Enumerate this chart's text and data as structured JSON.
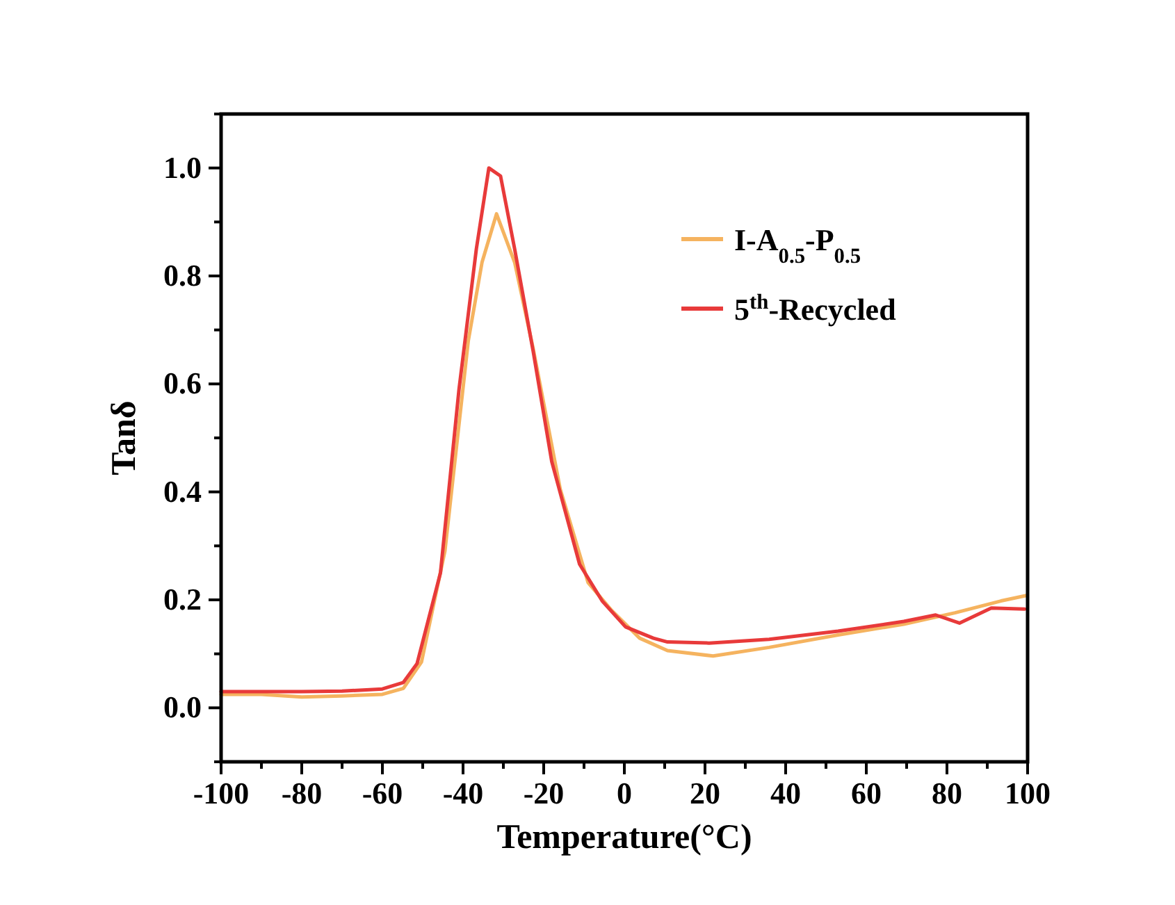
{
  "chart_data": {
    "type": "line",
    "xlabel": "Temperature(°C)",
    "ylabel": "Tanδ",
    "xlim": [
      -100,
      100
    ],
    "ylim": [
      -0.1,
      1.1
    ],
    "xticks": [
      -100,
      {
        "value": -90,
        "label": null
      },
      -80,
      {
        "value": -70,
        "label": null
      },
      -60,
      {
        "value": -50,
        "label": null
      },
      -40,
      {
        "value": -30,
        "label": null
      },
      -20,
      {
        "value": -10,
        "label": null
      },
      0,
      {
        "value": 10,
        "label": null
      },
      20,
      {
        "value": 30,
        "label": null
      },
      40,
      {
        "value": 50,
        "label": null
      },
      60,
      {
        "value": 70,
        "label": null
      },
      80,
      {
        "value": 90,
        "label": null
      },
      100
    ],
    "yticks": [
      {
        "value": -0.1,
        "label": null
      },
      {
        "value": 0,
        "label": "0.0"
      },
      {
        "value": 0.1,
        "label": null
      },
      {
        "value": 0.2,
        "label": "0.2"
      },
      {
        "value": 0.3,
        "label": null
      },
      {
        "value": 0.4,
        "label": "0.4"
      },
      {
        "value": 0.5,
        "label": null
      },
      {
        "value": 0.6,
        "label": "0.6"
      },
      {
        "value": 0.7,
        "label": null
      },
      {
        "value": 0.8,
        "label": "0.8"
      },
      {
        "value": 0.9,
        "label": null
      },
      {
        "value": 1.0,
        "label": "1.0"
      },
      {
        "value": 1.1,
        "label": null
      }
    ],
    "grid": false,
    "legend": "top right",
    "marker": "none",
    "line_style": "solid",
    "series": [
      {
        "name": "I-A$_{0.5}$-P$_{0.5}$",
        "color": "#f5b35f",
        "x": [
          -100,
          -90,
          -80,
          -70,
          -60,
          -54.8,
          -50.3,
          -44.5,
          -38.7,
          -35.3,
          -31.7,
          -27.2,
          -22.6,
          -15.9,
          -9,
          -3.1,
          3.8,
          10.7,
          22,
          35.9,
          53,
          69.3,
          82,
          93.4,
          99.7
        ],
        "values": [
          0.025,
          0.025,
          0.02,
          0.022,
          0.025,
          0.036,
          0.085,
          0.29,
          0.68,
          0.825,
          0.915,
          0.825,
          0.665,
          0.405,
          0.232,
          0.18,
          0.129,
          0.106,
          0.096,
          0.112,
          0.135,
          0.155,
          0.176,
          0.198,
          0.208
        ]
      },
      {
        "name": "5$^{th}$-Recycled",
        "color": "#e83a3a",
        "x": [
          -100,
          -90,
          -80,
          -70,
          -60,
          -54.8,
          -51.4,
          -45.6,
          -41,
          -36.7,
          -33.6,
          -30.7,
          -27.2,
          -22.6,
          -18,
          -11.1,
          -5.5,
          0.3,
          7.2,
          10.7,
          21,
          35.9,
          53,
          69.3,
          77.2,
          83.1,
          91,
          99.3
        ],
        "values": [
          0.03,
          0.03,
          0.03,
          0.031,
          0.035,
          0.047,
          0.082,
          0.25,
          0.59,
          0.85,
          1.0,
          0.985,
          0.85,
          0.66,
          0.456,
          0.266,
          0.198,
          0.15,
          0.129,
          0.122,
          0.12,
          0.127,
          0.142,
          0.16,
          0.172,
          0.157,
          0.185,
          0.183
        ]
      }
    ]
  }
}
